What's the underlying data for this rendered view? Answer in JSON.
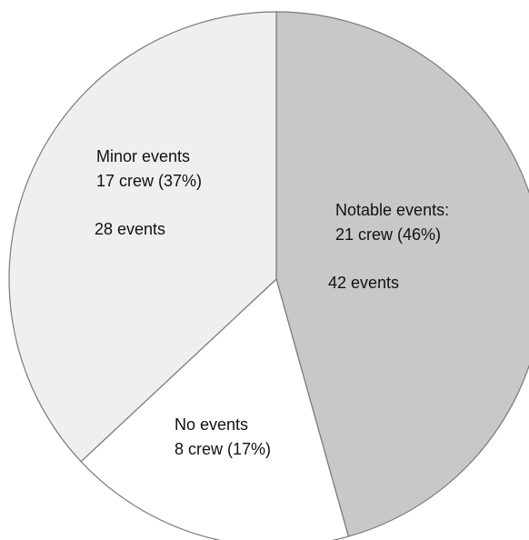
{
  "chart_data": {
    "type": "pie",
    "slices": [
      {
        "name": "Notable events:",
        "value": 21,
        "crew_label": "21 crew (46%)",
        "events_label": "42 events",
        "color": "#c8c8c8"
      },
      {
        "name": "No events",
        "value": 8,
        "crew_label": "8 crew (17%)",
        "events_label": "",
        "color": "#ffffff"
      },
      {
        "name": "Minor events",
        "value": 17,
        "crew_label": "17 crew (37%)",
        "events_label": "28 events",
        "color": "#efefef"
      }
    ],
    "start_angle_deg": 0,
    "direction": "clockwise",
    "stroke_color": "#7a7a7a"
  }
}
